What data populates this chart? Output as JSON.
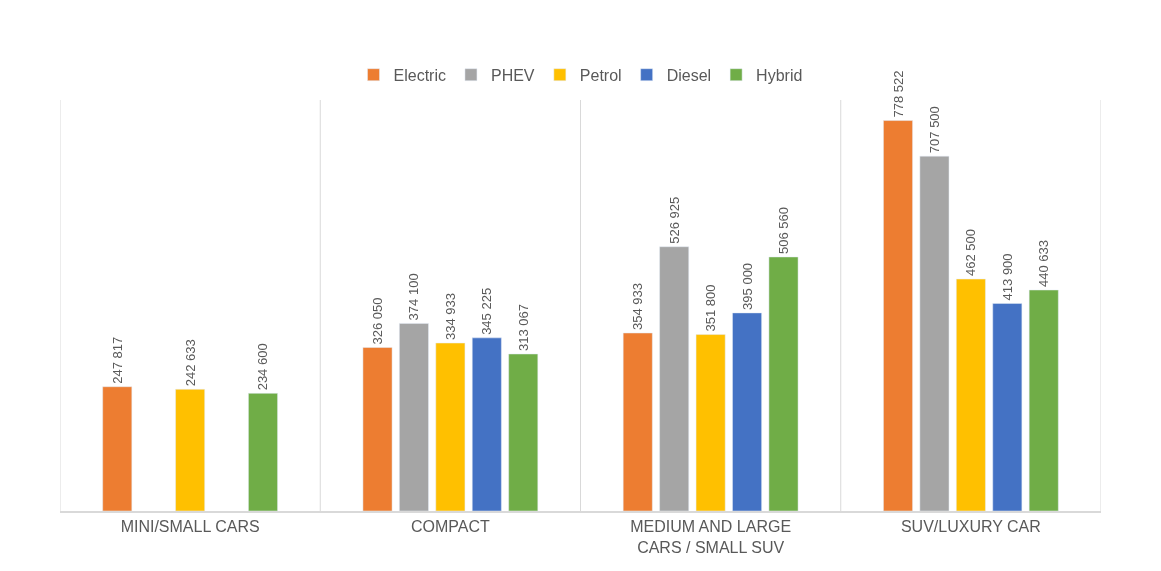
{
  "chart_data": {
    "type": "bar",
    "categories": [
      "MINI/SMALL CARS",
      "COMPACT",
      "MEDIUM AND LARGE CARS / SMALL SUV",
      "SUV/LUXURY CAR"
    ],
    "series": [
      {
        "name": "Electric",
        "color": "#ed7d31",
        "values": [
          247817,
          326050,
          354933,
          778522
        ],
        "value_labels": [
          "247 817",
          "326 050",
          "354 933",
          "778 522"
        ]
      },
      {
        "name": "PHEV",
        "color": "#a5a5a5",
        "values": [
          null,
          374100,
          526925,
          707500
        ],
        "value_labels": [
          null,
          "374 100",
          "526 925",
          "707 500"
        ]
      },
      {
        "name": "Petrol",
        "color": "#ffc000",
        "values": [
          242633,
          334933,
          351800,
          462500
        ],
        "value_labels": [
          "242 633",
          "334 933",
          "351 800",
          "462 500"
        ]
      },
      {
        "name": "Diesel",
        "color": "#4472c4",
        "values": [
          null,
          345225,
          395000,
          413900
        ],
        "value_labels": [
          null,
          "345 225",
          "395 000",
          "413 900"
        ]
      },
      {
        "name": "Hybrid",
        "color": "#70ad47",
        "values": [
          234600,
          313067,
          506560,
          440633
        ],
        "value_labels": [
          "234 600",
          "313 067",
          "506 560",
          "440 633"
        ]
      }
    ],
    "legend": "top",
    "grid": "x",
    "tick_labels": "x"
  }
}
